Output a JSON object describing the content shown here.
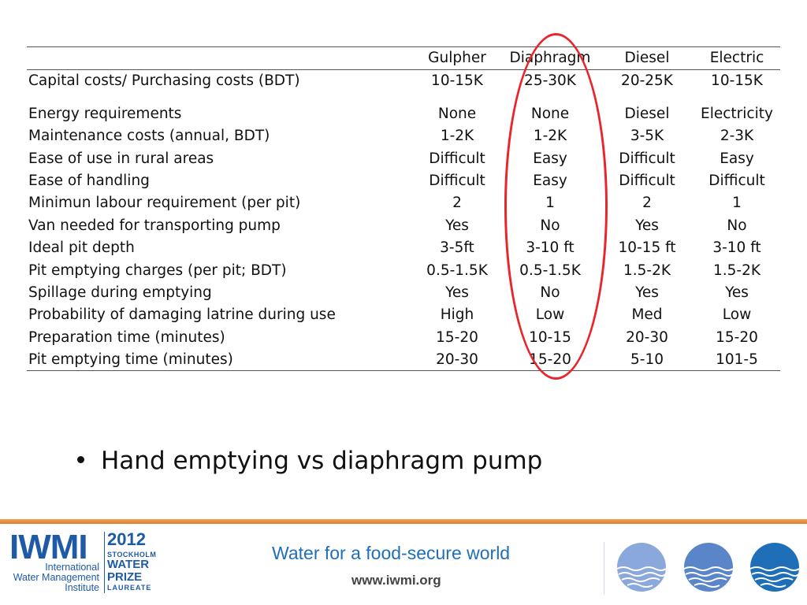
{
  "table": {
    "columns": [
      "Gulpher",
      "Diaphragm",
      "Diesel",
      "Electric"
    ],
    "rows": [
      {
        "label": "Capital costs/ Purchasing costs (BDT)",
        "values": [
          "10-15K",
          "25-30K",
          "20-25K",
          "10-15K"
        ]
      },
      {
        "label": "Energy requirements",
        "values": [
          "None",
          "None",
          "Diesel",
          "Electricity"
        ]
      },
      {
        "label": "Maintenance costs (annual, BDT)",
        "values": [
          "1-2K",
          "1-2K",
          "3-5K",
          "2-3K"
        ]
      },
      {
        "label": "Ease of use in rural areas",
        "values": [
          "Difficult",
          "Easy",
          "Difficult",
          "Easy"
        ]
      },
      {
        "label": "Ease of handling",
        "values": [
          "Difficult",
          "Easy",
          "Difficult",
          "Difficult"
        ]
      },
      {
        "label": "Minimun labour requirement (per pit)",
        "values": [
          "2",
          "1",
          "2",
          "1"
        ]
      },
      {
        "label": "Van needed for transporting pump",
        "values": [
          "Yes",
          "No",
          "Yes",
          "No"
        ]
      },
      {
        "label": "Ideal pit depth",
        "values": [
          "3-5ft",
          "3-10 ft",
          "10-15 ft",
          "3-10 ft"
        ]
      },
      {
        "label": "Pit emptying charges (per pit; BDT)",
        "values": [
          "0.5-1.5K",
          "0.5-1.5K",
          "1.5-2K",
          "1.5-2K"
        ]
      },
      {
        "label": "Spillage during emptying",
        "values": [
          "Yes",
          "No",
          "Yes",
          "Yes"
        ]
      },
      {
        "label": "Probability of damaging latrine during use",
        "values": [
          "High",
          "Low",
          "Med",
          "Low"
        ]
      },
      {
        "label": "Preparation time (minutes)",
        "values": [
          "15-20",
          "10-15",
          "20-30",
          "15-20"
        ]
      },
      {
        "label": "Pit emptying time (minutes)",
        "values": [
          "20-30",
          "15-20",
          "5-10",
          "101-5"
        ]
      }
    ]
  },
  "highlight": {
    "column": "Diaphragm",
    "color": "#e8252b"
  },
  "bullet": {
    "text": "Hand emptying vs diaphragm pump"
  },
  "footer": {
    "logo": {
      "name": "IWMI",
      "subtitle_lines": [
        "International",
        "Water Management",
        "Institute"
      ],
      "prize_year": "2012",
      "prize_lines": [
        "STOCKHOLM",
        "WATER",
        "PRIZE",
        "LAUREATE"
      ]
    },
    "tagline": "Water for a food-secure world",
    "website": "www.iwmi.org",
    "icons": [
      "water-waves-icon",
      "water-waves-icon",
      "water-waves-icon"
    ],
    "colors": {
      "stripe": "#e27b2c",
      "brand": "#1f5aa6",
      "tagline": "#1f6fb8"
    }
  }
}
